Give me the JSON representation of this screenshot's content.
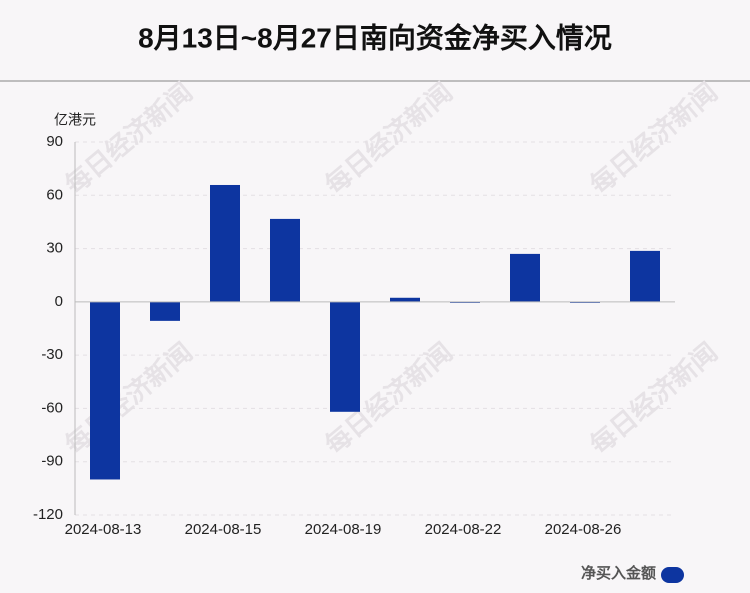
{
  "chart_data": {
    "type": "bar",
    "title": "8月13日~8月27日南向资金净买入情况",
    "y_axis_label": "亿港元",
    "watermark": "每日经济新闻",
    "categories": [
      "2024-08-13",
      null,
      "2024-08-15",
      null,
      "2024-08-19",
      null,
      "2024-08-22",
      null,
      "2024-08-26",
      null
    ],
    "series": [
      {
        "name": "净买入金额",
        "color": "#0d35a0",
        "values": [
          -100,
          -10.7,
          65.8,
          46.7,
          -61.9,
          2.3,
          -0.5,
          27,
          -0.2,
          28.7
        ]
      }
    ],
    "ylim": [
      -120,
      90
    ],
    "yticks": [
      -120,
      -90,
      -60,
      -30,
      0,
      30,
      60,
      90
    ],
    "grid": true
  }
}
